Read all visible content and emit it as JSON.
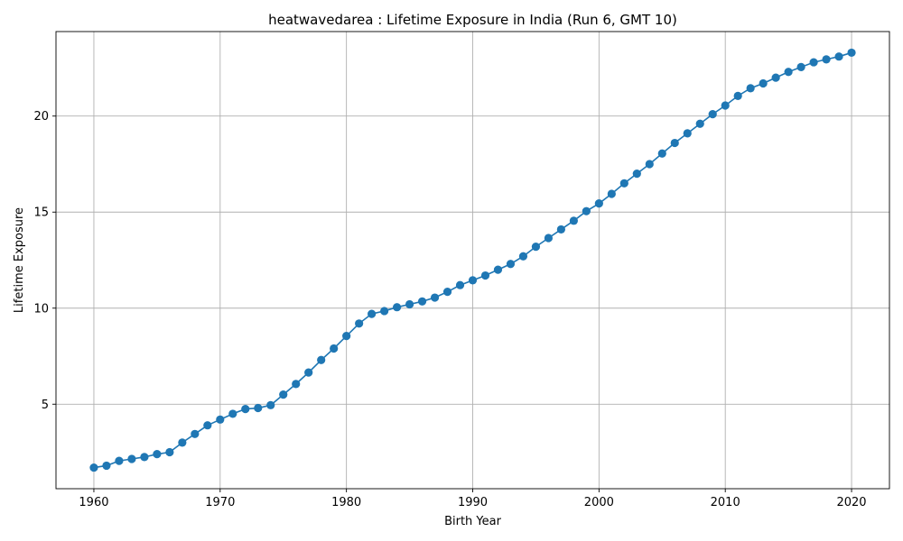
{
  "chart_data": {
    "type": "line",
    "title": "heatwavedarea : Lifetime Exposure in India (Run 6, GMT 10)",
    "xlabel": "Birth Year",
    "ylabel": "Lifetime Exposure",
    "xlim": [
      1957.0,
      2023.0
    ],
    "ylim": [
      0.6,
      24.4
    ],
    "xticks": [
      1960,
      1970,
      1980,
      1990,
      2000,
      2010,
      2020
    ],
    "yticks": [
      5,
      10,
      15,
      20
    ],
    "grid": true,
    "marker": "circle",
    "line_color": "#1f77b4",
    "series": [
      {
        "x": [
          1960,
          1961,
          1962,
          1963,
          1964,
          1965,
          1966,
          1967,
          1968,
          1969,
          1970,
          1971,
          1972,
          1973,
          1974,
          1975,
          1976,
          1977,
          1978,
          1979,
          1980,
          1981,
          1982,
          1983,
          1984,
          1985,
          1986,
          1987,
          1988,
          1989,
          1990,
          1991,
          1992,
          1993,
          1994,
          1995,
          1996,
          1997,
          1998,
          1999,
          2000,
          2001,
          2002,
          2003,
          2004,
          2005,
          2006,
          2007,
          2008,
          2009,
          2010,
          2011,
          2012,
          2013,
          2014,
          2015,
          2016,
          2017,
          2018,
          2019,
          2020
        ],
        "values": [
          1.7,
          1.8,
          2.05,
          2.15,
          2.25,
          2.4,
          2.5,
          3.0,
          3.45,
          3.9,
          4.2,
          4.5,
          4.75,
          4.8,
          4.95,
          5.5,
          6.05,
          6.65,
          7.3,
          7.9,
          8.55,
          9.2,
          9.7,
          9.85,
          10.05,
          10.2,
          10.35,
          10.55,
          10.85,
          11.2,
          11.45,
          11.7,
          12.0,
          12.3,
          12.7,
          13.2,
          13.65,
          14.1,
          14.55,
          15.05,
          15.45,
          15.95,
          16.5,
          17.0,
          17.5,
          18.05,
          18.6,
          19.1,
          19.6,
          20.1,
          20.55,
          21.05,
          21.45,
          21.7,
          22.0,
          22.3,
          22.55,
          22.8,
          22.95,
          23.1,
          23.3
        ]
      }
    ]
  }
}
